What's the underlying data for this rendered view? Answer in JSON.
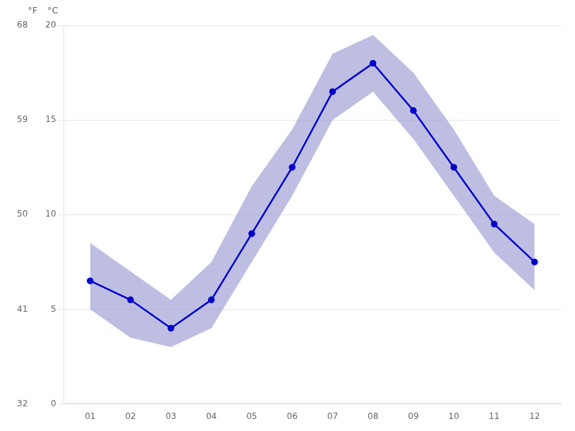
{
  "chart_data": {
    "type": "line",
    "x": [
      1,
      2,
      3,
      4,
      5,
      6,
      7,
      8,
      9,
      10,
      11,
      12
    ],
    "xlim": [
      0.35,
      12.65
    ],
    "xticks": [
      {
        "value": 1,
        "label": "01"
      },
      {
        "value": 2,
        "label": "02"
      },
      {
        "value": 3,
        "label": "03"
      },
      {
        "value": 4,
        "label": "04"
      },
      {
        "value": 5,
        "label": "05"
      },
      {
        "value": 6,
        "label": "06"
      },
      {
        "value": 7,
        "label": "07"
      },
      {
        "value": 8,
        "label": "08"
      },
      {
        "value": 9,
        "label": "09"
      },
      {
        "value": 10,
        "label": "10"
      },
      {
        "value": 11,
        "label": "11"
      },
      {
        "value": 12,
        "label": "12"
      }
    ],
    "ylim": [
      0,
      20
    ],
    "yticks": [
      0,
      5,
      10,
      15,
      20
    ],
    "y_label": "°C",
    "y2lim": [
      32,
      68
    ],
    "y2ticks": [
      32,
      41,
      50,
      59,
      68
    ],
    "y2_label": "°F",
    "grid": "y",
    "series": [
      {
        "type": "band",
        "color": "#8888cc",
        "low": [
          5.0,
          3.5,
          3.0,
          4.0,
          7.5,
          11.0,
          15.0,
          16.5,
          14.0,
          11.0,
          8.0,
          6.0
        ],
        "high": [
          8.5,
          7.0,
          5.5,
          7.5,
          11.5,
          14.5,
          18.5,
          19.5,
          17.5,
          14.5,
          11.0,
          9.5
        ]
      },
      {
        "type": "line",
        "color": "#0000cc",
        "marker": "circle",
        "values": [
          6.5,
          5.5,
          4.0,
          5.5,
          9.0,
          12.5,
          16.5,
          18.0,
          15.5,
          12.5,
          9.5,
          7.5
        ]
      }
    ]
  }
}
